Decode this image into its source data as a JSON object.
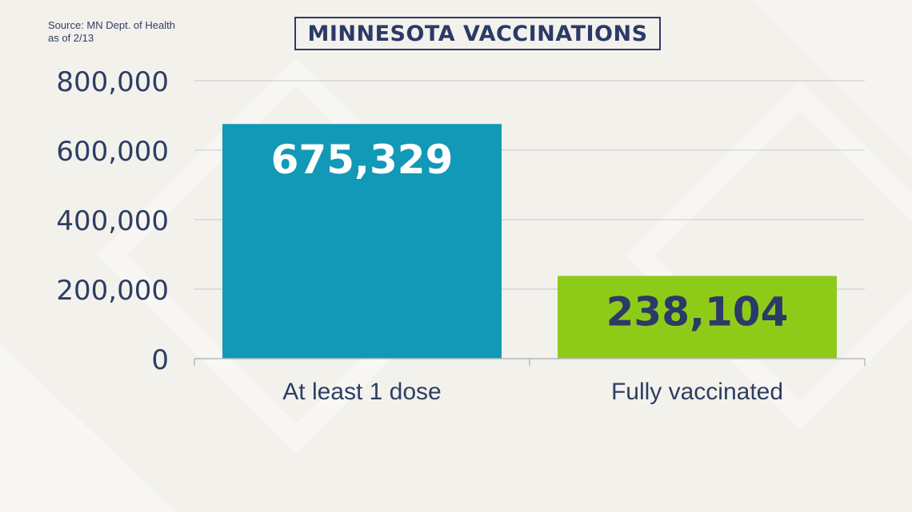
{
  "source": {
    "line1": "Source: MN Dept. of Health",
    "line2": "as of 2/13"
  },
  "colors": {
    "title": "#2b3a66",
    "axis_text": "#2d3e63",
    "bar_1": "#1199b7",
    "bar_2": "#8ecb19",
    "label_on_bar_1": "#ffffff",
    "label_on_bar_2": "#2b3a66",
    "gridline": "#c9c9c9"
  },
  "chart_data": {
    "type": "bar",
    "title": "MINNESOTA VACCINATIONS",
    "categories": [
      "At least 1 dose",
      "Fully vaccinated"
    ],
    "values": [
      675329,
      238104
    ],
    "data_labels": [
      "675,329",
      "238,104"
    ],
    "yticks": [
      0,
      200000,
      400000,
      600000,
      800000
    ],
    "ytick_labels": [
      "0",
      "200,000",
      "400,000",
      "600,000",
      "800,000"
    ],
    "ylim": [
      0,
      800000
    ],
    "xlabel": "",
    "ylabel": "",
    "grid": true,
    "legend": "none"
  }
}
